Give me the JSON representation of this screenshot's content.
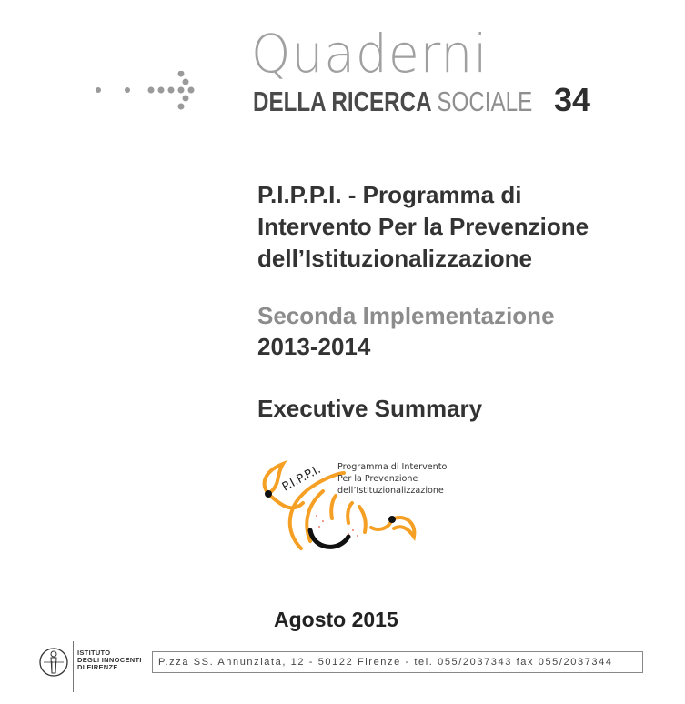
{
  "header": {
    "series_script": "Quaderni",
    "series_dark": "DELLA RICERCA",
    "series_light": "SOCIALE",
    "issue_number": "34"
  },
  "title": {
    "lines": [
      "P.I.P.P.I. - Programma di",
      "Intervento Per la Prevenzione",
      "dell’Istituzionalizzazione"
    ],
    "subtitle": "Seconda Implementazione",
    "years": "2013-2014",
    "summary": "Executive Summary"
  },
  "logo": {
    "acronym": "P.I.P.P.I.",
    "lines": [
      "Programma di Intervento",
      "Per la Prevenzione",
      "dell’Istituzionalizzazione"
    ],
    "colors": {
      "orange": "#f5a024",
      "black": "#111111",
      "red_dots": "#e8553a"
    }
  },
  "date": "Agosto 2015",
  "footer": {
    "institute_lines": [
      "ISTITUTO",
      "DEGLI INNOCENTI",
      "DI FIRENZE"
    ],
    "address": "P.zza SS. Annunziata, 12 - 50122 Firenze - tel. 055/2037343 fax 055/2037344"
  }
}
